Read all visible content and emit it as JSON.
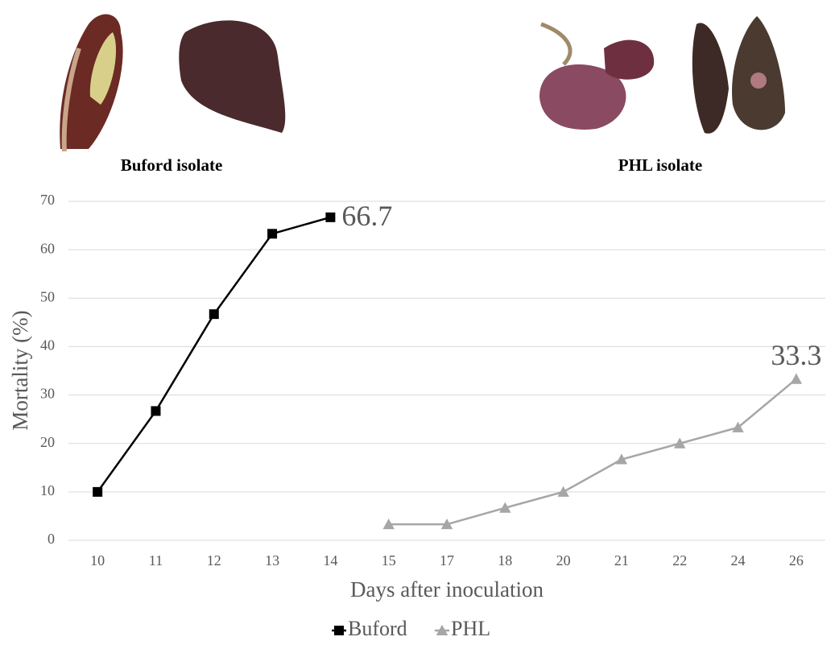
{
  "chart_data": {
    "type": "line",
    "image_captions": [
      "Buford isolate",
      "PHL isolate"
    ],
    "x_label": "Days after inoculation",
    "y_label": "Mortality (%)",
    "categories": [
      "10",
      "11",
      "12",
      "13",
      "14",
      "15",
      "17",
      "18",
      "20",
      "21",
      "22",
      "24",
      "26"
    ],
    "series": [
      {
        "name": "Buford",
        "color": "#000000",
        "marker": "square",
        "values": [
          10,
          26.7,
          46.7,
          63.3,
          66.7,
          null,
          null,
          null,
          null,
          null,
          null,
          null,
          null
        ]
      },
      {
        "name": "PHL",
        "color": "#a6a6a6",
        "marker": "triangle",
        "values": [
          null,
          null,
          null,
          null,
          null,
          3.3,
          3.3,
          6.7,
          10,
          16.7,
          20,
          23.3,
          33.3
        ]
      }
    ],
    "data_labels": [
      {
        "series": 0,
        "index": 4
      },
      {
        "series": 1,
        "index": 12
      }
    ],
    "ylim": [
      0,
      70
    ],
    "yticks": [
      0,
      10,
      20,
      30,
      40,
      50,
      60,
      70
    ],
    "grid": true,
    "legend": "bottom"
  }
}
